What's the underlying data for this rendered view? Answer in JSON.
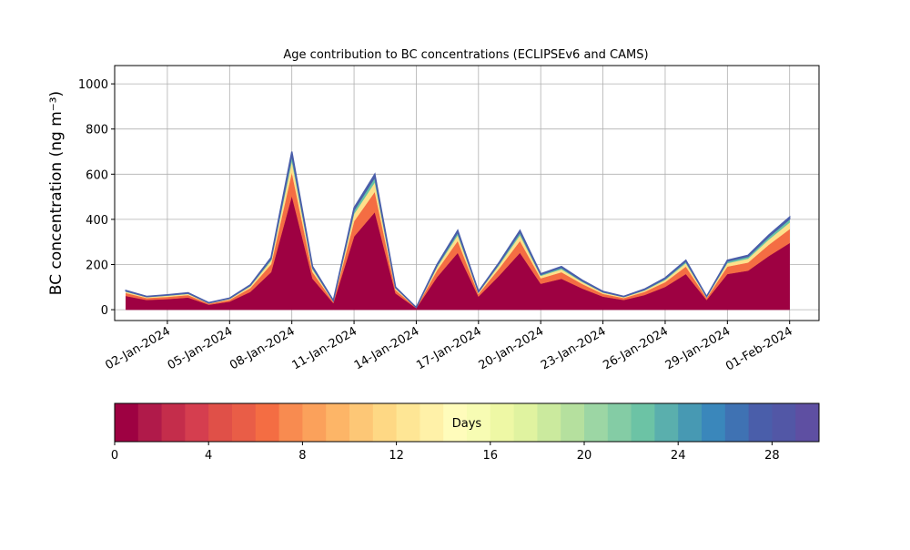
{
  "chart_data": {
    "type": "stacked_area",
    "title": "Age contribution to BC concentrations (ECLIPSEv6 and CAMS)",
    "y_label": "BC concentration (ng m⁻³)",
    "x": [
      "2023-12-31",
      "2024-01-01",
      "2024-01-02",
      "2024-01-03",
      "2024-01-04",
      "2024-01-05",
      "2024-01-06",
      "2024-01-07",
      "2024-01-08",
      "2024-01-09",
      "2024-01-10",
      "2024-01-11",
      "2024-01-12",
      "2024-01-13",
      "2024-01-14",
      "2024-01-15",
      "2024-01-16",
      "2024-01-17",
      "2024-01-18",
      "2024-01-19",
      "2024-01-20",
      "2024-01-21",
      "2024-01-22",
      "2024-01-23",
      "2024-01-24",
      "2024-01-25",
      "2024-01-26",
      "2024-01-27",
      "2024-01-28",
      "2024-01-29",
      "2024-01-30",
      "2024-01-31",
      "2024-02-01"
    ],
    "series": [
      {
        "color": "#9e0142",
        "values": [
          61,
          43,
          47,
          54,
          22,
          36,
          79,
          166,
          504,
          137,
          29,
          324,
          432,
          72,
          7,
          144,
          252,
          58,
          151,
          252,
          115,
          137,
          94,
          58,
          43,
          65,
          101,
          158,
          43,
          158,
          173,
          238,
          295
        ]
      },
      {
        "color": "#f46d43",
        "values": [
          13,
          9,
          10,
          11,
          5,
          8,
          17,
          35,
          105,
          29,
          6,
          68,
          90,
          15,
          2,
          30,
          53,
          12,
          32,
          53,
          24,
          29,
          20,
          12,
          9,
          14,
          21,
          33,
          9,
          33,
          36,
          50,
          62
        ]
      },
      {
        "color": "#fee08b",
        "values": [
          6,
          4,
          5,
          5,
          2,
          4,
          8,
          16,
          49,
          13,
          3,
          32,
          42,
          7,
          1,
          14,
          25,
          6,
          15,
          25,
          11,
          13,
          9,
          6,
          4,
          6,
          10,
          15,
          4,
          15,
          17,
          23,
          29
        ]
      },
      {
        "color": "#66c2a5",
        "values": [
          3,
          2,
          3,
          3,
          1,
          2,
          4,
          9,
          28,
          8,
          2,
          18,
          24,
          4,
          0,
          8,
          14,
          3,
          8,
          14,
          6,
          8,
          5,
          3,
          2,
          4,
          6,
          9,
          2,
          9,
          10,
          13,
          16
        ]
      },
      {
        "color": "#4a5eaa",
        "values": [
          2,
          1,
          1,
          2,
          1,
          1,
          2,
          5,
          14,
          4,
          1,
          9,
          12,
          2,
          0,
          4,
          7,
          2,
          4,
          7,
          3,
          4,
          3,
          2,
          1,
          2,
          3,
          4,
          1,
          4,
          5,
          7,
          8
        ]
      }
    ],
    "xlim": [
      "2023-12-30T11:00:00Z",
      "2024-02-02T10:00:00Z"
    ],
    "xticks": [
      {
        "value": "2024-01-02",
        "label": "02-Jan-2024"
      },
      {
        "value": "2024-01-05",
        "label": "05-Jan-2024"
      },
      {
        "value": "2024-01-08",
        "label": "08-Jan-2024"
      },
      {
        "value": "2024-01-11",
        "label": "11-Jan-2024"
      },
      {
        "value": "2024-01-14",
        "label": "14-Jan-2024"
      },
      {
        "value": "2024-01-17",
        "label": "17-Jan-2024"
      },
      {
        "value": "2024-01-20",
        "label": "20-Jan-2024"
      },
      {
        "value": "2024-01-23",
        "label": "23-Jan-2024"
      },
      {
        "value": "2024-01-26",
        "label": "26-Jan-2024"
      },
      {
        "value": "2024-01-29",
        "label": "29-Jan-2024"
      },
      {
        "value": "2024-02-01",
        "label": "01-Feb-2024"
      }
    ],
    "ylim": [
      -48,
      1081
    ],
    "yticks": [
      0,
      200,
      400,
      600,
      800,
      1000
    ],
    "grid": true,
    "colorbar": {
      "label": "Days",
      "lim": [
        0,
        30
      ],
      "ticks": [
        0,
        4,
        8,
        12,
        16,
        20,
        24,
        28
      ],
      "colors": [
        "#9e0142",
        "#b01a4a",
        "#c42d4b",
        "#d53e4f",
        "#e05048",
        "#e95d47",
        "#f46d43",
        "#f88b50",
        "#fba15b",
        "#fdb567",
        "#fdc776",
        "#fed884",
        "#fee695",
        "#fff1a8",
        "#fffcbb",
        "#f7fcb3",
        "#eef8a5",
        "#e0f3a0",
        "#cbea9e",
        "#b5e09e",
        "#9cd6a4",
        "#84cca5",
        "#6cc3a5",
        "#5aafad",
        "#4799b3",
        "#3a87bb",
        "#3f72b3",
        "#4a5eaa",
        "#5257a6",
        "#5e4fa2"
      ]
    }
  }
}
